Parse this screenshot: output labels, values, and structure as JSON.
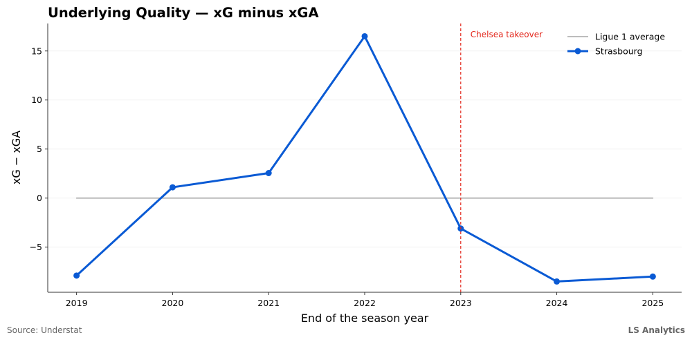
{
  "chart_data": {
    "type": "line",
    "title": "Underlying Quality — xG minus xGA",
    "xlabel": "End of the season year",
    "ylabel": "xG − xGA",
    "x": [
      2019,
      2020,
      2021,
      2022,
      2023,
      2024,
      2025
    ],
    "xlim": [
      2018.7,
      2025.3
    ],
    "ylim": [
      -9.6,
      17.8
    ],
    "yticks": [
      -5,
      0,
      5,
      10,
      15
    ],
    "ytick_labels": [
      "−5",
      "0",
      "5",
      "10",
      "15"
    ],
    "grid": true,
    "legend_position": "top-right",
    "series": [
      {
        "name": "Ligue 1 average",
        "values": [
          0,
          0,
          0,
          0,
          0,
          0,
          0
        ],
        "color": "#a6a6a6",
        "markers": false
      },
      {
        "name": "Strasbourg",
        "values": [
          -7.9,
          1.1,
          2.55,
          16.5,
          -3.1,
          -8.5,
          -8.0
        ],
        "color": "#0a5ad4",
        "markers": true
      }
    ],
    "annotations": [
      {
        "type": "vline",
        "x": 2023,
        "label": "Chelsea takeover",
        "color": "#e3261b"
      }
    ]
  },
  "footer": {
    "source": "Source: Understat",
    "brand": "LS Analytics"
  }
}
